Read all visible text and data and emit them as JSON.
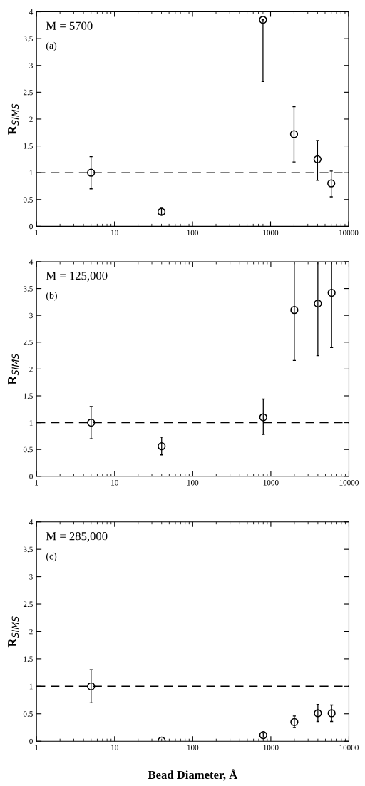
{
  "chart_data": [
    {
      "type": "scatter",
      "ylabel": "R$_{SIMS}$",
      "annotations": [
        "M = 5700",
        "(a)"
      ],
      "log": "x",
      "xlim": [
        1,
        10000
      ],
      "xticks": [
        1,
        10,
        100,
        1000,
        10000
      ],
      "ylim": [
        0,
        4
      ],
      "yticks": [
        0,
        0.5,
        1,
        1.5,
        2,
        2.5,
        3,
        3.5,
        4
      ],
      "marker": "circle",
      "grid": false,
      "x": [
        5,
        40,
        800,
        2000,
        4000,
        6000
      ],
      "series": [
        {
          "color": "#000000",
          "values": [
            1.0,
            0.27,
            3.85,
            1.72,
            1.25,
            0.8
          ],
          "errors": [
            [
              0.7,
              1.3
            ],
            [
              0.22,
              0.35
            ],
            [
              2.7,
              3.85
            ],
            [
              1.2,
              2.23
            ],
            [
              0.86,
              1.6
            ],
            [
              0.55,
              1.03
            ]
          ]
        }
      ],
      "ref_lines": [
        {
          "axis": "y",
          "value": 1,
          "line_style": "dashed",
          "color": "#000000"
        }
      ]
    },
    {
      "type": "scatter",
      "ylabel": "R$_{SIMS}$",
      "annotations": [
        "M = 125,000",
        "(b)"
      ],
      "log": "x",
      "xlim": [
        1,
        10000
      ],
      "xticks": [
        1,
        10,
        100,
        1000,
        10000
      ],
      "ylim": [
        0,
        4
      ],
      "yticks": [
        0,
        0.5,
        1,
        1.5,
        2,
        2.5,
        3,
        3.5,
        4
      ],
      "marker": "circle",
      "grid": false,
      "x": [
        5,
        40,
        800,
        2000,
        4000,
        6000
      ],
      "series": [
        {
          "color": "#000000",
          "values": [
            1.0,
            0.56,
            1.1,
            3.1,
            3.22,
            3.42
          ],
          "errors": [
            [
              0.7,
              1.3
            ],
            [
              0.4,
              0.73
            ],
            [
              0.78,
              1.44
            ],
            [
              2.16,
              4
            ],
            [
              2.25,
              4
            ],
            [
              2.4,
              4
            ]
          ]
        }
      ],
      "ref_lines": [
        {
          "axis": "y",
          "value": 1,
          "line_style": "dashed",
          "color": "#000000"
        }
      ]
    },
    {
      "type": "scatter",
      "ylabel": "R$_{SIMS}$",
      "xlabel": "Bead Diameter, Å",
      "annotations": [
        "M = 285,000",
        "(c)"
      ],
      "log": "x",
      "xlim": [
        1,
        10000
      ],
      "xticks": [
        1,
        10,
        100,
        1000,
        10000
      ],
      "ylim": [
        0,
        4
      ],
      "yticks": [
        0,
        0.5,
        1,
        1.5,
        2,
        2.5,
        3,
        3.5,
        4
      ],
      "marker": "circle",
      "grid": false,
      "x": [
        5,
        40,
        800,
        2000,
        4000,
        6000
      ],
      "series": [
        {
          "color": "#000000",
          "values": [
            1.0,
            0.01,
            0.11,
            0.35,
            0.51,
            0.51
          ],
          "errors": [
            [
              0.7,
              1.3
            ],
            null,
            [
              0.07,
              0.15
            ],
            [
              0.25,
              0.46
            ],
            [
              0.36,
              0.67
            ],
            [
              0.36,
              0.66
            ]
          ]
        }
      ],
      "ref_lines": [
        {
          "axis": "y",
          "value": 1,
          "line_style": "dashed",
          "color": "#000000"
        }
      ]
    }
  ]
}
